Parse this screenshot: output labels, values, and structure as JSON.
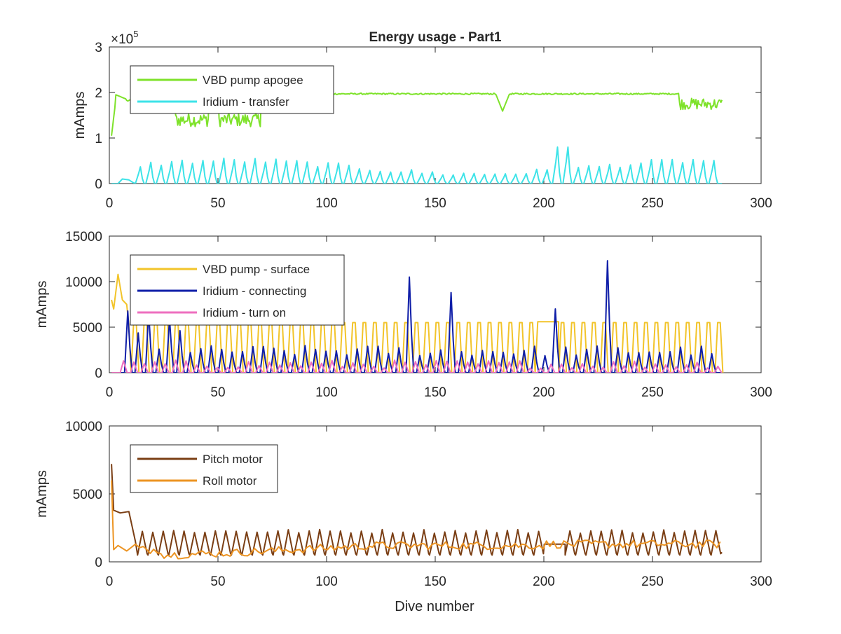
{
  "chart_data": [
    {
      "type": "line",
      "title": "Energy usage - Part1",
      "xlabel": "",
      "ylabel": "mAmps",
      "exponent_label": "×10",
      "exponent_power": "5",
      "xlim": [
        0,
        300
      ],
      "ylim": [
        0,
        300000
      ],
      "xticks": [
        "0",
        "50",
        "100",
        "150",
        "200",
        "250",
        "300"
      ],
      "yticks": [
        "0",
        "1",
        "2",
        "3"
      ],
      "ytick_values": [
        0,
        100000,
        200000,
        300000
      ],
      "legend_position": "top-left",
      "series": [
        {
          "name": "VBD pump apogee",
          "color": "#7ee22a",
          "pattern": "vbd_apogee",
          "x_end": 282
        },
        {
          "name": "Iridium - transfer",
          "color": "#3de3e8",
          "pattern": "iridium_transfer",
          "x_end": 282
        }
      ]
    },
    {
      "type": "line",
      "title": "",
      "xlabel": "",
      "ylabel": "mAmps",
      "xlim": [
        0,
        300
      ],
      "ylim": [
        0,
        15000
      ],
      "xticks": [
        "0",
        "50",
        "100",
        "150",
        "200",
        "250",
        "300"
      ],
      "yticks": [
        "0",
        "5000",
        "10000",
        "15000"
      ],
      "ytick_values": [
        0,
        5000,
        10000,
        15000
      ],
      "legend_position": "top-left",
      "series": [
        {
          "name": "VBD pump - surface",
          "color": "#f2c42a",
          "pattern": "vbd_surface",
          "x_end": 282
        },
        {
          "name": "Iridium - connecting",
          "color": "#0f1ea8",
          "pattern": "iridium_connecting",
          "x_end": 282
        },
        {
          "name": "Iridium - turn on",
          "color": "#ee6fbf",
          "pattern": "iridium_turnon",
          "x_end": 282
        }
      ]
    },
    {
      "type": "line",
      "title": "",
      "xlabel": "Dive number",
      "ylabel": "mAmps",
      "xlim": [
        0,
        300
      ],
      "ylim": [
        0,
        10000
      ],
      "xticks": [
        "0",
        "50",
        "100",
        "150",
        "200",
        "250",
        "300"
      ],
      "yticks": [
        "0",
        "5000",
        "10000"
      ],
      "ytick_values": [
        0,
        5000,
        10000
      ],
      "legend_position": "top-left",
      "series": [
        {
          "name": "Pitch motor",
          "color": "#7a3e14",
          "pattern": "pitch",
          "x_end": 282
        },
        {
          "name": "Roll motor",
          "color": "#ec9423",
          "pattern": "roll",
          "x_end": 282
        }
      ]
    }
  ]
}
